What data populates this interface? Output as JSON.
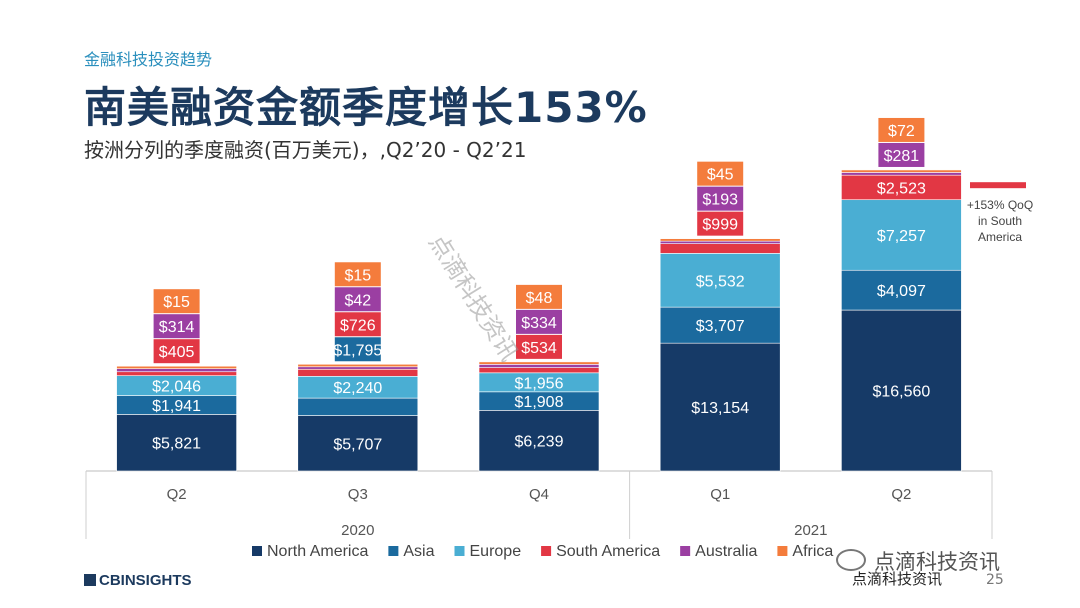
{
  "header": {
    "kicker": "金融科技投资趋势",
    "title": "南美融资金额季度增长153%",
    "subtitle": "按洲分列的季度融资(百万美元)，,Q2’20 - Q2’21"
  },
  "chart_data": {
    "type": "bar",
    "stacked": true,
    "categories": [
      "Q2",
      "Q3",
      "Q4",
      "Q1",
      "Q2"
    ],
    "years": [
      {
        "label": "2020",
        "span": [
          0,
          2
        ]
      },
      {
        "label": "2021",
        "span": [
          3,
          4
        ]
      }
    ],
    "series": [
      {
        "name": "North America",
        "color": "#163a67",
        "values": [
          5821,
          5707,
          6239,
          13154,
          16560
        ],
        "labels": [
          "$5,821",
          "$5,707",
          "$6,239",
          "$13,154",
          "$16,560"
        ]
      },
      {
        "name": "Asia",
        "color": "#1b6a9e",
        "values": [
          1941,
          1795,
          1908,
          3707,
          4097
        ],
        "labels": [
          "$1,941",
          "$1,795",
          "$1,908",
          "$3,707",
          "$4,097"
        ]
      },
      {
        "name": "Europe",
        "color": "#4aaed3",
        "values": [
          2046,
          2240,
          1956,
          5532,
          7257
        ],
        "labels": [
          "$2,046",
          "$2,240",
          "$1,956",
          "$5,532",
          "$7,257"
        ]
      },
      {
        "name": "South America",
        "color": "#e23744",
        "values": [
          405,
          726,
          534,
          999,
          2523
        ],
        "labels": [
          "$405",
          "$726",
          "$534",
          "$999",
          "$2,523"
        ]
      },
      {
        "name": "Australia",
        "color": "#9b3fa2",
        "values": [
          314,
          42,
          334,
          193,
          281
        ],
        "labels": [
          "$314",
          "$42",
          "$334",
          "$193",
          "$281"
        ]
      },
      {
        "name": "Africa",
        "color": "#f47c3c",
        "values": [
          15,
          15,
          48,
          45,
          72
        ],
        "labels": [
          "$15",
          "$15",
          "$48",
          "$45",
          "$72"
        ]
      }
    ],
    "annotation": {
      "text": [
        "+153% QoQ",
        "in South",
        "America"
      ],
      "color": "#e23744"
    },
    "ylim": [
      0,
      32000
    ],
    "grid": false,
    "legend": "bottom"
  },
  "watermark": "点滴科技资讯",
  "footer": {
    "logo": "CBINSIGHTS",
    "social_name": "点滴科技资讯",
    "source": "点滴科技资讯",
    "page": "25"
  }
}
